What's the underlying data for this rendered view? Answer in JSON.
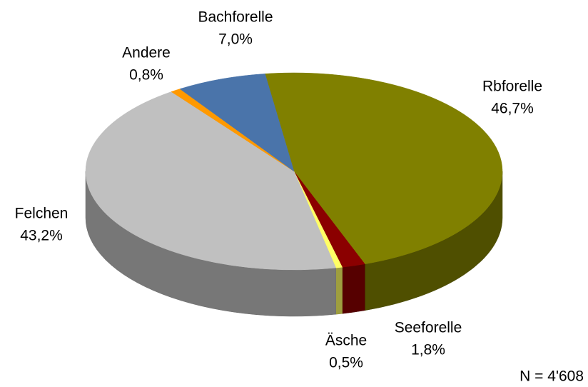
{
  "chart_data": {
    "type": "pie3d",
    "categories": [
      "Rbforelle",
      "Seeforelle",
      "Äsche",
      "Felchen",
      "Andere",
      "Bachforelle"
    ],
    "values": [
      46.7,
      1.8,
      0.5,
      43.2,
      0.8,
      7.0
    ],
    "value_labels": [
      "46,7%",
      "1,8%",
      "0,5%",
      "43,2%",
      "0,8%",
      "7,0%"
    ],
    "colors": [
      "#808000",
      "#8b0000",
      "#ffff66",
      "#c0c0c0",
      "#ff9900",
      "#4a74aa"
    ],
    "annotation": "N = 4'608"
  }
}
